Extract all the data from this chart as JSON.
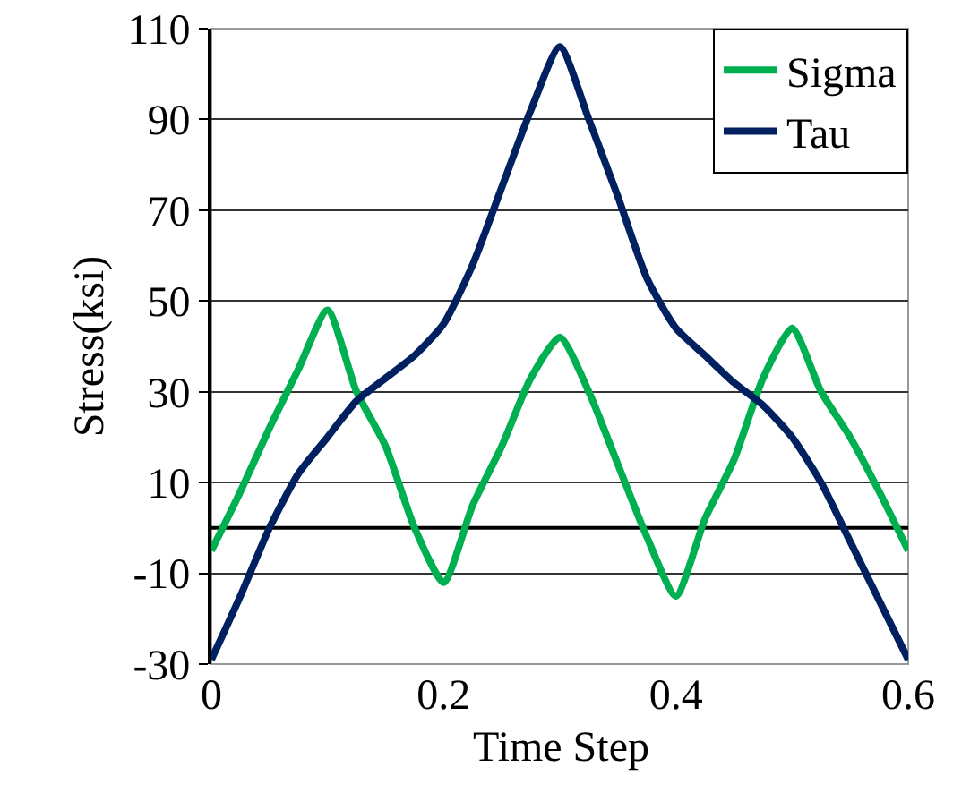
{
  "chart_data": {
    "type": "line",
    "xlabel": "Time Step",
    "ylabel": "Stress(ksi)",
    "x": [
      0,
      0.025,
      0.05,
      0.075,
      0.1,
      0.125,
      0.15,
      0.175,
      0.2,
      0.225,
      0.25,
      0.275,
      0.3,
      0.325,
      0.35,
      0.375,
      0.4,
      0.425,
      0.45,
      0.475,
      0.5,
      0.525,
      0.55,
      0.575,
      0.6
    ],
    "series": [
      {
        "name": "Sigma",
        "color": "#00b050",
        "values": [
          -5,
          8,
          22,
          35,
          48,
          30,
          18,
          0,
          -12,
          5,
          18,
          33,
          42,
          30,
          14,
          -2,
          -15,
          2,
          15,
          33,
          44,
          30,
          20,
          8,
          -5
        ]
      },
      {
        "name": "Tau",
        "color": "#002060",
        "values": [
          -29,
          -15,
          0,
          12,
          20,
          28,
          33,
          38,
          45,
          58,
          75,
          92,
          106,
          90,
          73,
          55,
          44,
          38,
          32,
          27,
          20,
          10,
          -3,
          -16,
          -29
        ]
      }
    ],
    "xlim": [
      0,
      0.6
    ],
    "xticks": [
      0,
      0.2,
      0.4,
      0.6
    ],
    "ylim": [
      -30,
      110
    ],
    "yticks": [
      -30,
      -10,
      10,
      30,
      50,
      70,
      90,
      110
    ],
    "ref_lines": [
      {
        "axis": "y",
        "value": 0,
        "color": "#000000"
      }
    ],
    "grid": "y",
    "legend": "top right",
    "marker": "none",
    "line_style": "solid"
  }
}
